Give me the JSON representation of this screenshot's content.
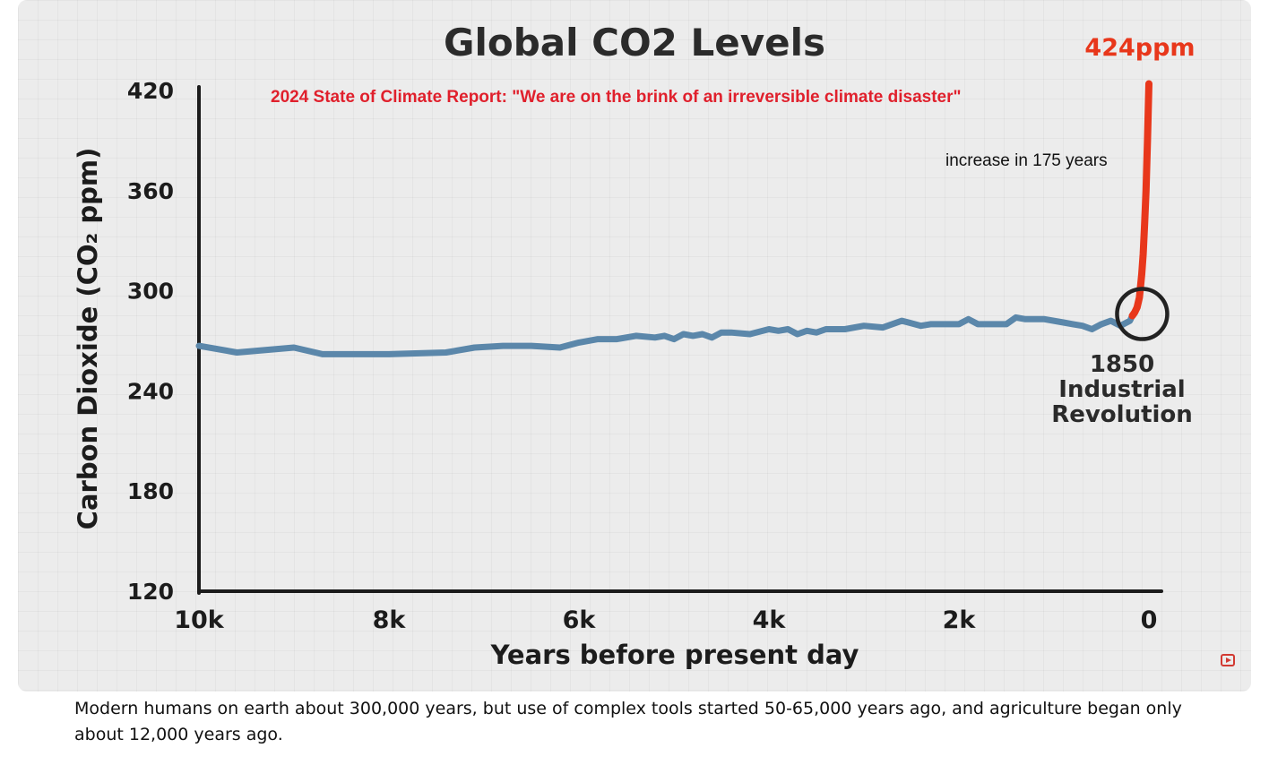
{
  "chart_data": {
    "type": "line",
    "title": "Global CO2 Levels",
    "subtitle": "2024 State of Climate Report:  \"We are on the brink of an irreversible climate disaster\"",
    "xlabel": "Years before present day",
    "ylabel": "Carbon Dioxide (CO₂ ppm)",
    "xlim": [
      10000,
      0
    ],
    "ylim": [
      120,
      420
    ],
    "xticks": [
      {
        "value": 10000,
        "label": "10k"
      },
      {
        "value": 8000,
        "label": "8k"
      },
      {
        "value": 6000,
        "label": "6k"
      },
      {
        "value": 4000,
        "label": "4k"
      },
      {
        "value": 2000,
        "label": "2k"
      },
      {
        "value": 0,
        "label": "0"
      }
    ],
    "yticks": [
      {
        "value": 420,
        "label": "420"
      },
      {
        "value": 360,
        "label": "360"
      },
      {
        "value": 300,
        "label": "300"
      },
      {
        "value": 240,
        "label": "240"
      },
      {
        "value": 180,
        "label": "180"
      },
      {
        "value": 120,
        "label": "120"
      }
    ],
    "grid": false,
    "legend": "none",
    "series": [
      {
        "color": "#5b87aa",
        "x": [
          10000,
          9600,
          9000,
          8700,
          8000,
          7400,
          7100,
          6800,
          6500,
          6200,
          6000,
          5800,
          5600,
          5400,
          5200,
          5100,
          5000,
          4900,
          4800,
          4700,
          4600,
          4500,
          4400,
          4200,
          4000,
          3900,
          3800,
          3700,
          3600,
          3500,
          3400,
          3200,
          3000,
          2800,
          2600,
          2400,
          2300,
          2000,
          1900,
          1800,
          1700,
          1500,
          1400,
          1300,
          1100,
          900,
          800,
          700,
          600,
          500,
          400,
          300,
          200,
          175
        ],
        "y": [
          267,
          263,
          266,
          262,
          262,
          263,
          266,
          267,
          267,
          266,
          269,
          271,
          271,
          273,
          272,
          273,
          271,
          274,
          273,
          274,
          272,
          275,
          275,
          274,
          277,
          276,
          277,
          274,
          276,
          275,
          277,
          277,
          279,
          278,
          282,
          279,
          280,
          280,
          283,
          280,
          280,
          280,
          284,
          283,
          283,
          281,
          280,
          279,
          277,
          280,
          282,
          279,
          282,
          285
        ]
      },
      {
        "color": "#e8371b",
        "x": [
          175,
          150,
          125,
          100,
          75,
          60,
          45,
          30,
          15,
          0
        ],
        "y": [
          285,
          287,
          290,
          296,
          310,
          322,
          340,
          360,
          390,
          424
        ]
      }
    ],
    "annotations": [
      {
        "text": "424ppm",
        "x": 0,
        "y": 424,
        "color": "#e8371b"
      },
      {
        "text": "increase in 175 years",
        "x": 1350,
        "y": 375
      },
      {
        "text": "1850",
        "x": 175,
        "y": 240
      },
      {
        "text": "Industrial",
        "x": 175,
        "y": 226
      },
      {
        "text": "Revolution",
        "x": 175,
        "y": 212
      }
    ],
    "highlight": {
      "x": 175,
      "y": 285,
      "label_lines": [
        "1850",
        "Industrial",
        "Revolution"
      ]
    }
  },
  "caption": "Modern humans on earth about 300,000 years, but use of complex tools started 50-65,000 years ago, and agriculture began only about 12,000 years ago.",
  "icons": {
    "video_badge": "youtube-play-icon"
  }
}
